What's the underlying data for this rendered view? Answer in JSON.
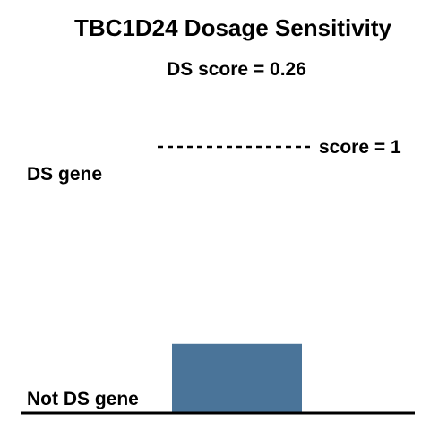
{
  "chart_data": {
    "type": "bar",
    "title": "TBC1D24 Dosage Sensitivity",
    "subtitle": "DS score = 0.26",
    "values": [
      0.26
    ],
    "ylim": [
      0,
      1
    ],
    "reference_line": {
      "value": 1,
      "label": "score = 1",
      "style": "dashed"
    },
    "annotations": {
      "top_label": "DS gene",
      "bottom_label": "Not DS gene"
    },
    "grid": false,
    "colors": {
      "bar": "#4a7499",
      "axis": "#000000",
      "text": "#000000"
    }
  }
}
